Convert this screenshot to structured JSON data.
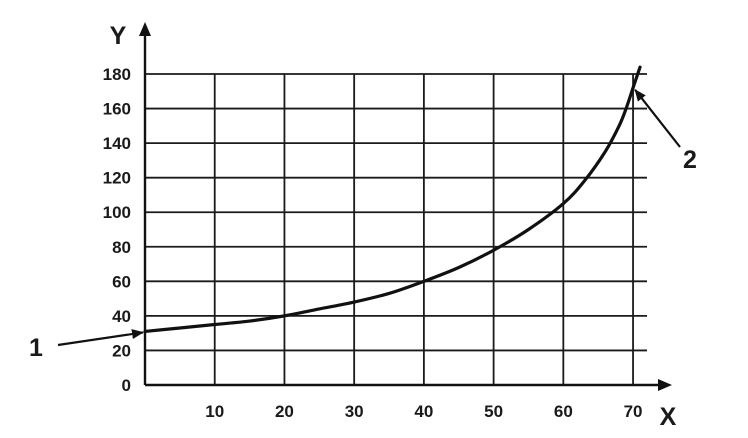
{
  "chart_data": {
    "type": "line",
    "title": "",
    "xlabel": "X",
    "ylabel": "Y",
    "xlim": [
      0,
      72
    ],
    "ylim": [
      0,
      180
    ],
    "x_ticks": [
      10,
      20,
      30,
      40,
      50,
      60,
      70
    ],
    "y_ticks": [
      0,
      20,
      40,
      60,
      80,
      100,
      120,
      140,
      160,
      180
    ],
    "grid": true,
    "legend": "none",
    "series": [
      {
        "x": [
          0,
          5,
          10,
          15,
          20,
          25,
          30,
          35,
          40,
          45,
          50,
          55,
          60,
          63,
          66,
          68,
          69,
          70,
          71
        ],
        "values": [
          31,
          33,
          35,
          37,
          40,
          44,
          48,
          53,
          60,
          68,
          78,
          90,
          105,
          118,
          135,
          150,
          160,
          172,
          184
        ]
      }
    ],
    "annotations": [
      {
        "label": "1",
        "target_x": 0,
        "target_y": 31
      },
      {
        "label": "2",
        "target_x": 70,
        "target_y": 172
      }
    ],
    "colors": {
      "line": "#111111",
      "grid": "#1a1a1a",
      "axis": "#111111",
      "text": "#1a1a1a"
    }
  }
}
